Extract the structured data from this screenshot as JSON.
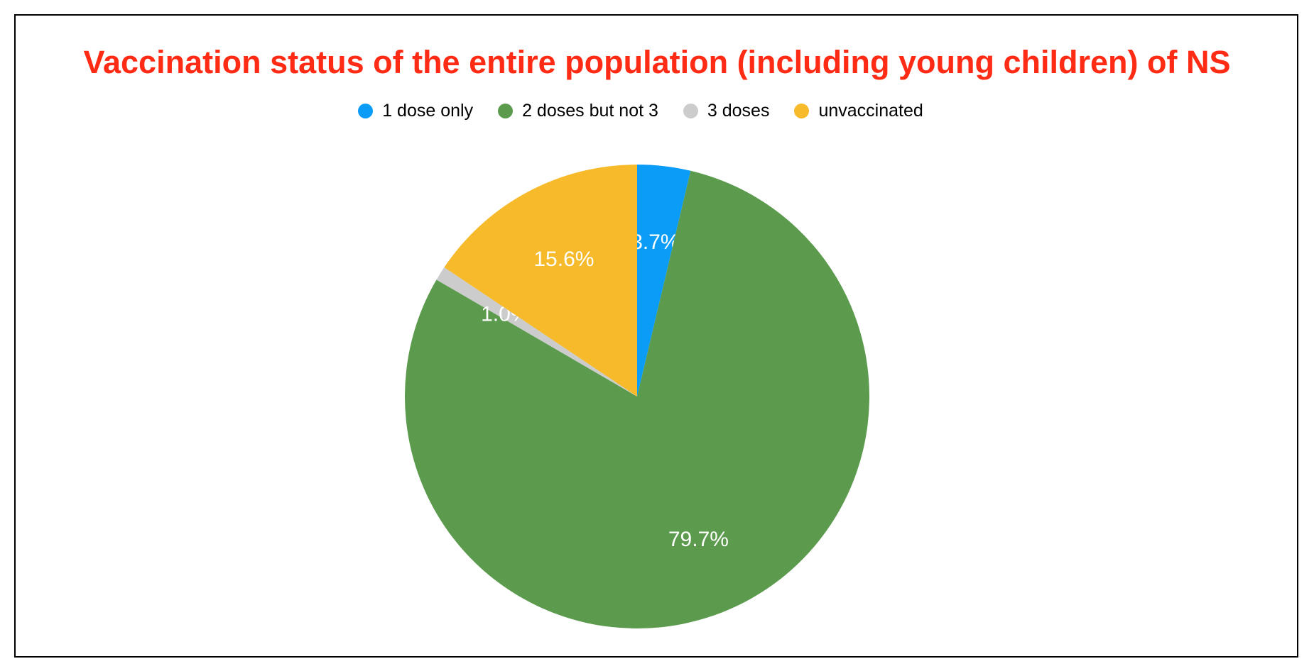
{
  "title": {
    "text": "Vaccination status of the entire population (including young children) of NS",
    "color": "#ff2b14"
  },
  "frame": {
    "border_color": "#000000",
    "background_color": "#ffffff"
  },
  "legend": [
    {
      "label": "1 dose only",
      "color": "#0a9cf7",
      "icon": "circle-swatch-icon"
    },
    {
      "label": "2 doses but not 3",
      "color": "#5c9b4d",
      "icon": "circle-swatch-icon"
    },
    {
      "label": "3 doses",
      "color": "#cccccc",
      "icon": "circle-swatch-icon"
    },
    {
      "label": "unvaccinated",
      "color": "#f6ba2b",
      "icon": "circle-swatch-icon"
    }
  ],
  "chart_data": {
    "type": "pie",
    "title": "Vaccination status of the entire population (including young children) of NS",
    "categories": [
      "1 dose only",
      "2 doses but not 3",
      "3 doses",
      "unvaccinated"
    ],
    "values": [
      3.7,
      79.7,
      1.0,
      15.6
    ],
    "slice_labels": [
      "3.7%",
      "79.7%",
      "1.0%",
      "15.6%"
    ],
    "colors": [
      "#0a9cf7",
      "#5c9b4d",
      "#cccccc",
      "#f6ba2b"
    ],
    "start_angle_deg": 0,
    "direction": "clockwise",
    "label_color": "#ffffff",
    "label_radius_fraction": 0.67,
    "legend_position": "top",
    "title_color": "#ff2b14"
  }
}
